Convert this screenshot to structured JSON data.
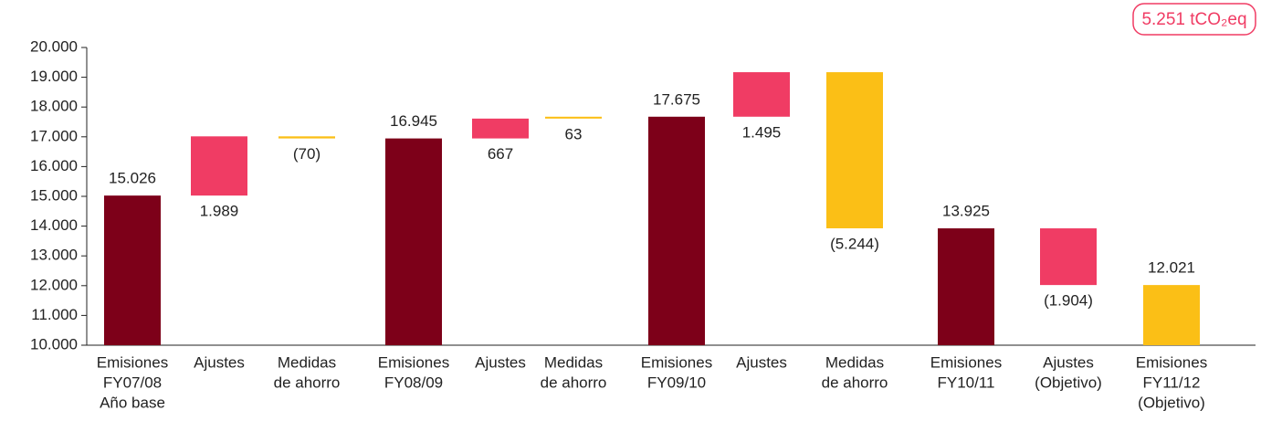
{
  "chart_data": {
    "type": "waterfall",
    "badge": "5.251 tCO₂eq",
    "categories": [
      [
        "Emisiones",
        "FY07/08",
        "Año base"
      ],
      [
        "Ajustes"
      ],
      [
        "Medidas",
        "de ahorro"
      ],
      [
        "Emisiones",
        "FY08/09"
      ],
      [
        "Ajustes"
      ],
      [
        "Medidas",
        "de ahorro"
      ],
      [
        "Emisiones",
        "FY09/10"
      ],
      [
        "Ajustes"
      ],
      [
        "Medidas",
        "de ahorro"
      ],
      [
        "Emisiones",
        "FY10/11"
      ],
      [
        "Ajustes",
        "(Objetivo)"
      ],
      [
        "Emisiones",
        "FY11/12",
        "(Objetivo)"
      ]
    ],
    "measure": [
      "total",
      "relative",
      "relative",
      "total",
      "relative",
      "relative",
      "total",
      "relative",
      "relative",
      "total",
      "relative",
      "total"
    ],
    "values": [
      15026,
      1989,
      -70,
      16945,
      667,
      63,
      17675,
      1495,
      -5244,
      13925,
      -1904,
      12021
    ],
    "value_labels": [
      "15.026",
      "1.989",
      "(70)",
      "16.945",
      "667",
      "63",
      "17.675",
      "1.495",
      "(5.244)",
      "13.925",
      "(1.904)",
      "12.021"
    ],
    "colors": [
      "#7d0019",
      "#f03c64",
      "#fbbf16",
      "#7d0019",
      "#f03c64",
      "#fbbf16",
      "#7d0019",
      "#f03c64",
      "#fbbf16",
      "#7d0019",
      "#f03c64",
      "#fbbf16"
    ],
    "ylim": [
      10000,
      20000
    ],
    "yticks": [
      {
        "value": 10000,
        "label": "10.000"
      },
      {
        "value": 11000,
        "label": "11.000"
      },
      {
        "value": 12000,
        "label": "12.000"
      },
      {
        "value": 13000,
        "label": "13.000"
      },
      {
        "value": 14000,
        "label": "14.000"
      },
      {
        "value": 15000,
        "label": "15.000"
      },
      {
        "value": 16000,
        "label": "16.000"
      },
      {
        "value": 17000,
        "label": "17.000"
      },
      {
        "value": 18000,
        "label": "18.000"
      },
      {
        "value": 19000,
        "label": "19.000"
      },
      {
        "value": 20000,
        "label": "20.000"
      }
    ]
  }
}
